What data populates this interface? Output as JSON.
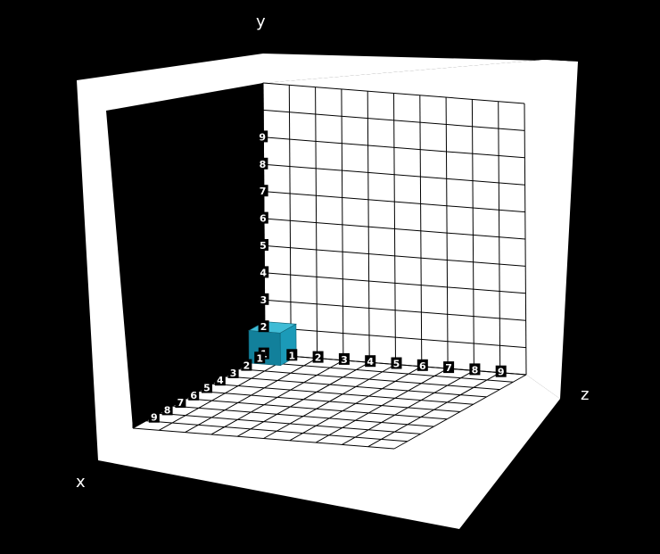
{
  "axes": {
    "x_label": "x",
    "y_label": "y",
    "z_label": "z",
    "ticks": [
      "1",
      "2",
      "3",
      "4",
      "5",
      "6",
      "7",
      "8",
      "9"
    ]
  },
  "grid": {
    "divisions": 10,
    "line_color": "#000000",
    "wall_color": "#ffffff"
  },
  "blocks": [
    {
      "x": 0,
      "y": 0,
      "z": 0,
      "color": "#1b9ab8"
    }
  ],
  "colors": {
    "background": "#000000",
    "cube": "#1b9ab8"
  }
}
